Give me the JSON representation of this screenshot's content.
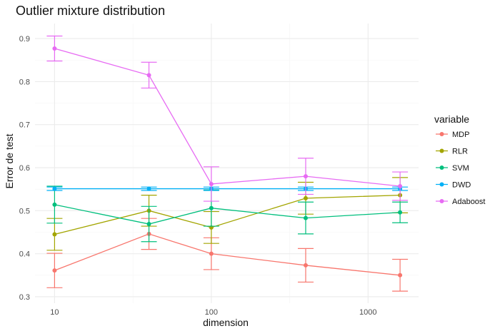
{
  "chart_data": {
    "type": "line",
    "title": "Outlier mixture distribution",
    "xlabel": "dimension",
    "ylabel": "Error de test",
    "x_scale": "log10",
    "x": [
      10,
      40,
      100,
      400,
      1600
    ],
    "xlim": [
      7.5,
      2100
    ],
    "ylim": [
      0.285,
      0.935
    ],
    "x_ticks": [
      10,
      100,
      1000
    ],
    "x_tick_labels": [
      "10",
      "100",
      "1000"
    ],
    "y_ticks": [
      0.3,
      0.4,
      0.5,
      0.6,
      0.7,
      0.8,
      0.9
    ],
    "y_tick_labels": [
      "0.3",
      "0.4",
      "0.5",
      "0.6",
      "0.7",
      "0.8",
      "0.9"
    ],
    "grid": true,
    "legend": {
      "title": "variable",
      "position": "right"
    },
    "series": [
      {
        "name": "MDP",
        "color": "#F8766D",
        "values": [
          0.361,
          0.446,
          0.4,
          0.373,
          0.35
        ],
        "lower": [
          0.321,
          0.41,
          0.363,
          0.334,
          0.313
        ],
        "upper": [
          0.401,
          0.482,
          0.437,
          0.412,
          0.387
        ]
      },
      {
        "name": "RLR",
        "color": "#A3A500",
        "values": [
          0.445,
          0.5,
          0.461,
          0.529,
          0.536
        ],
        "lower": [
          0.408,
          0.464,
          0.424,
          0.492,
          0.495
        ],
        "upper": [
          0.482,
          0.536,
          0.498,
          0.566,
          0.577
        ]
      },
      {
        "name": "SVM",
        "color": "#00BF7D",
        "values": [
          0.514,
          0.469,
          0.506,
          0.483,
          0.496
        ],
        "lower": [
          0.471,
          0.428,
          0.464,
          0.446,
          0.472
        ],
        "upper": [
          0.557,
          0.51,
          0.548,
          0.52,
          0.52
        ]
      },
      {
        "name": "DWD",
        "color": "#00B0F6",
        "values": [
          0.551,
          0.551,
          0.551,
          0.551,
          0.551
        ],
        "lower": [
          0.547,
          0.547,
          0.547,
          0.547,
          0.547
        ],
        "upper": [
          0.555,
          0.555,
          0.555,
          0.555,
          0.555
        ]
      },
      {
        "name": "Adaboost",
        "color": "#E76BF3",
        "values": [
          0.877,
          0.815,
          0.562,
          0.58,
          0.557
        ],
        "lower": [
          0.848,
          0.785,
          0.522,
          0.538,
          0.524
        ],
        "upper": [
          0.906,
          0.845,
          0.602,
          0.622,
          0.59
        ]
      }
    ]
  }
}
